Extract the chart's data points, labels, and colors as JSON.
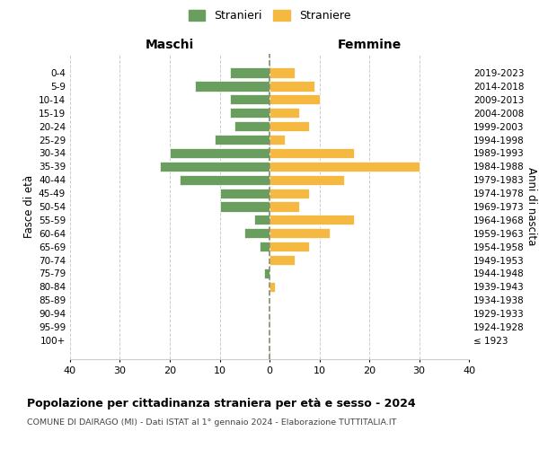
{
  "age_groups": [
    "100+",
    "95-99",
    "90-94",
    "85-89",
    "80-84",
    "75-79",
    "70-74",
    "65-69",
    "60-64",
    "55-59",
    "50-54",
    "45-49",
    "40-44",
    "35-39",
    "30-34",
    "25-29",
    "20-24",
    "15-19",
    "10-14",
    "5-9",
    "0-4"
  ],
  "birth_years": [
    "≤ 1923",
    "1924-1928",
    "1929-1933",
    "1934-1938",
    "1939-1943",
    "1944-1948",
    "1949-1953",
    "1954-1958",
    "1959-1963",
    "1964-1968",
    "1969-1973",
    "1974-1978",
    "1979-1983",
    "1984-1988",
    "1989-1993",
    "1994-1998",
    "1999-2003",
    "2004-2008",
    "2009-2013",
    "2014-2018",
    "2019-2023"
  ],
  "maschi": [
    0,
    0,
    0,
    0,
    0,
    1,
    0,
    2,
    5,
    3,
    10,
    10,
    18,
    22,
    20,
    11,
    7,
    8,
    8,
    15,
    8
  ],
  "femmine": [
    0,
    0,
    0,
    0,
    1,
    0,
    5,
    8,
    12,
    17,
    6,
    8,
    15,
    30,
    17,
    3,
    8,
    6,
    10,
    9,
    5
  ],
  "color_maschi": "#6a9e5e",
  "color_femmine": "#f5b942",
  "color_dashed": "#8b8b6a",
  "title": "Popolazione per cittadinanza straniera per età e sesso - 2024",
  "subtitle": "COMUNE DI DAIRAGO (MI) - Dati ISTAT al 1° gennaio 2024 - Elaborazione TUTTITALIA.IT",
  "xlabel_left": "Maschi",
  "xlabel_right": "Femmine",
  "ylabel_left": "Fasce di età",
  "ylabel_right": "Anni di nascita",
  "legend_stranieri": "Stranieri",
  "legend_straniere": "Straniere",
  "xlim": 40,
  "background_color": "#ffffff",
  "grid_color": "#cccccc"
}
